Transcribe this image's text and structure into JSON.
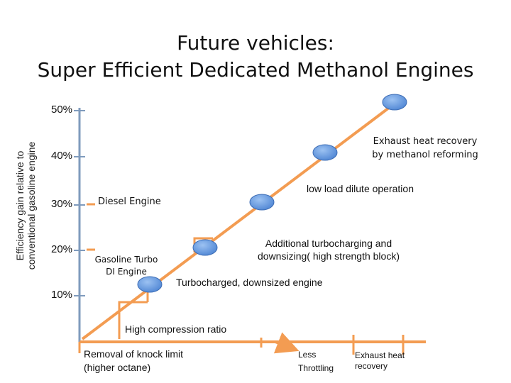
{
  "title": {
    "line1": "Future vehicles:",
    "line2": "Super Efficient Dedicated Methanol Engines"
  },
  "y_axis": {
    "label_line1": "Efficiency gain relative to",
    "label_line2": "conventional gasoline engine",
    "ticks": [
      "50%",
      "40%",
      "30%",
      "20%",
      "10%"
    ]
  },
  "steps": [
    {
      "text": "Gasoline Turbo\nDI Engine"
    },
    {
      "text": "Diesel Engine"
    },
    {
      "text": "Turbocharged, downsized engine"
    },
    {
      "text": "Additional turbocharging and\ndownsizing( high strength block)"
    },
    {
      "text": "low load dilute operation"
    },
    {
      "text": "Exhaust heat recovery\nby methanol reforming"
    }
  ],
  "x_labels": {
    "high_compression": "High compression ratio",
    "knock": "Removal of knock limit\n(higher octane)",
    "less_throttling": "Less\nThrottling",
    "exhaust_heat": "Exhaust heat\nrecovery"
  },
  "colors": {
    "arrow": "#f39c52",
    "axis": "#7f9bbd",
    "node_fill": "#5b8fd8",
    "node_stroke": "#3c6cb4"
  }
}
